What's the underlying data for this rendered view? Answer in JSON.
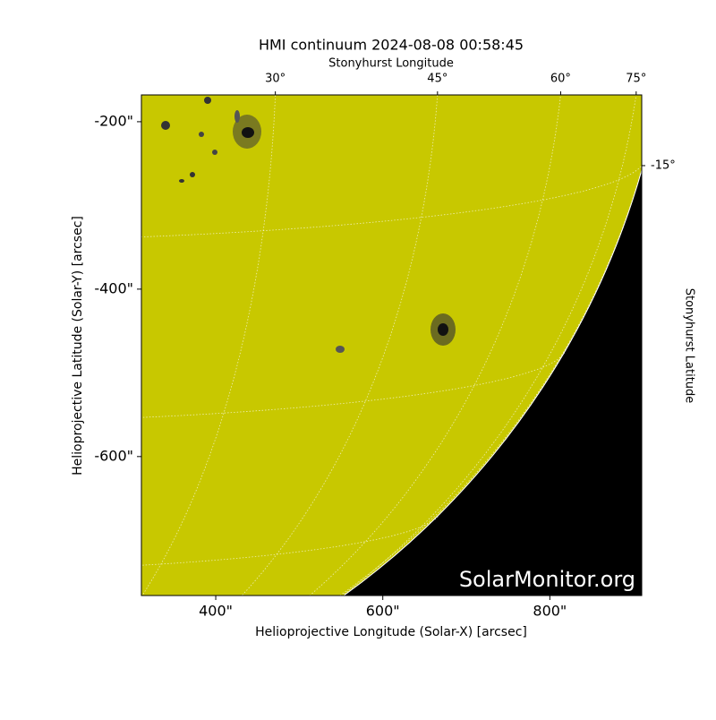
{
  "chart_data": {
    "type": "image",
    "title": "HMI continuum 2024-08-08 00:58:45",
    "x_label": "Helioprojective Longitude (Solar-X) [arcsec]",
    "y_label": "Helioprojective Latitude (Solar-Y) [arcsec]",
    "top_label": "Stonyhurst Longitude",
    "right_label": "Stonyhurst Latitude",
    "watermark": "SolarMonitor.org",
    "xlim": [
      311,
      910
    ],
    "ylim": [
      -766,
      -168
    ],
    "xticks": [
      {
        "value": 400,
        "label": "400\""
      },
      {
        "value": 600,
        "label": "600\""
      },
      {
        "value": 800,
        "label": "800\""
      }
    ],
    "yticks": [
      {
        "value": -200,
        "label": "-200\""
      },
      {
        "value": -400,
        "label": "-400\""
      },
      {
        "value": -600,
        "label": "-600\""
      }
    ],
    "top_ticks": [
      {
        "value": 30,
        "label": "30°"
      },
      {
        "value": 45,
        "label": "45°"
      },
      {
        "value": 60,
        "label": "60°"
      },
      {
        "value": 75,
        "label": "75°"
      }
    ],
    "right_ticks": [
      {
        "value": -15,
        "label": "-15°"
      }
    ],
    "color": "#c8c800"
  }
}
